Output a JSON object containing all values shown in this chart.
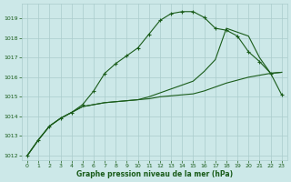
{
  "background_color": "#cce8e8",
  "grid_color": "#aacccc",
  "line_color": "#1a5c1a",
  "marker_color": "#1a5c1a",
  "xlabel": "Graphe pression niveau de la mer (hPa)",
  "xlabel_color": "#1a5c1a",
  "xtick_color": "#1a5c1a",
  "ytick_color": "#1a5c1a",
  "ylim": [
    1011.75,
    1019.75
  ],
  "xlim": [
    -0.5,
    23.5
  ],
  "yticks": [
    1012,
    1013,
    1014,
    1015,
    1016,
    1017,
    1018,
    1019
  ],
  "xticks": [
    0,
    1,
    2,
    3,
    4,
    5,
    6,
    7,
    8,
    9,
    10,
    11,
    12,
    13,
    14,
    15,
    16,
    17,
    18,
    19,
    20,
    21,
    22,
    23
  ],
  "series1_x": [
    0,
    1,
    2,
    3,
    4,
    5,
    6,
    7,
    8,
    9,
    10,
    11,
    12,
    13,
    14,
    15,
    16,
    17,
    18,
    19,
    20,
    21,
    22,
    23
  ],
  "series1_y": [
    1012.0,
    1012.8,
    1013.5,
    1013.9,
    1014.2,
    1014.6,
    1015.3,
    1016.2,
    1016.7,
    1017.1,
    1017.5,
    1018.2,
    1018.9,
    1019.25,
    1019.35,
    1019.35,
    1019.05,
    1018.5,
    1018.4,
    1018.1,
    1017.3,
    1016.8,
    1016.2,
    1015.1
  ],
  "series2_x": [
    0,
    1,
    2,
    3,
    4,
    5,
    6,
    7,
    8,
    9,
    10,
    11,
    12,
    13,
    14,
    15,
    16,
    17,
    18,
    19,
    20,
    21,
    22,
    23
  ],
  "series2_y": [
    1012.0,
    1012.8,
    1013.5,
    1013.9,
    1014.2,
    1014.5,
    1014.6,
    1014.7,
    1014.75,
    1014.8,
    1014.85,
    1014.9,
    1015.0,
    1015.05,
    1015.1,
    1015.15,
    1015.3,
    1015.5,
    1015.7,
    1015.85,
    1016.0,
    1016.1,
    1016.2,
    1016.25
  ],
  "series3_x": [
    0,
    1,
    2,
    3,
    4,
    5,
    6,
    7,
    8,
    9,
    10,
    11,
    12,
    13,
    14,
    15,
    16,
    17,
    18,
    19,
    20,
    21,
    22,
    23
  ],
  "series3_y": [
    1012.0,
    1012.8,
    1013.5,
    1013.9,
    1014.2,
    1014.5,
    1014.6,
    1014.7,
    1014.75,
    1014.8,
    1014.85,
    1015.0,
    1015.2,
    1015.4,
    1015.6,
    1015.8,
    1016.3,
    1016.9,
    1018.5,
    1018.3,
    1018.1,
    1017.0,
    1016.2,
    1016.25
  ]
}
